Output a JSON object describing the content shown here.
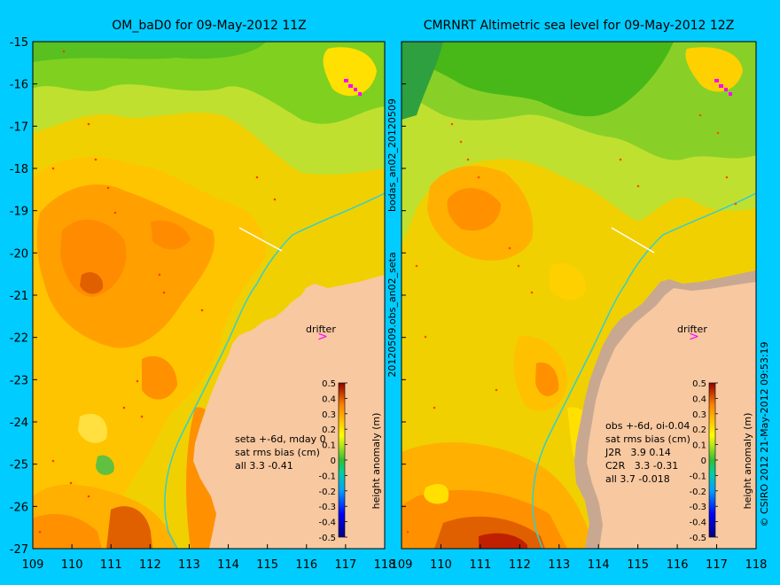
{
  "colors": {
    "background": "#00ccff",
    "land": "#f8c8a0",
    "coast_shallow": "#c8a890",
    "isobath": "#30d0d0",
    "drifter": "#ff00ff"
  },
  "left_panel": {
    "title": "OM_baD0 for 09-May-2012 11Z",
    "drifter_label": "drifter",
    "stats": [
      "seta +-6d, mday 0",
      "sat rms bias (cm)",
      "all 3.3 -0.41"
    ]
  },
  "right_panel": {
    "title": "CMRNRT Altimetric sea level  for 09-May-2012 12Z",
    "drifter_label": "drifter",
    "stats": [
      "obs +-6d, oi-0.04",
      "sat rms bias (cm)",
      "J2R   3.9 0.14",
      "C2R   3.3 -0.31",
      "all 3.7 -0.018"
    ]
  },
  "y_ticks": [
    "-15",
    "-16",
    "-17",
    "-18",
    "-19",
    "-20",
    "-21",
    "-22",
    "-23",
    "-24",
    "-25",
    "-26",
    "-27"
  ],
  "x_ticks": [
    "109",
    "110",
    "111",
    "112",
    "113",
    "114",
    "115",
    "116",
    "117",
    "118"
  ],
  "colorbar": {
    "label": "height anomaly (m)",
    "ticks": [
      "0.5",
      "0.4",
      "0.3",
      "0.2",
      "0.1",
      "0",
      "-0.1",
      "-0.2",
      "-0.3",
      "-0.4",
      "-0.5"
    ]
  },
  "side_labels": {
    "top": "bodas_an02_20120509",
    "bottom": "20120509.obs_an02_seta"
  },
  "credit": "© CSIRO 2012   21-May-2012 09:53:19"
}
